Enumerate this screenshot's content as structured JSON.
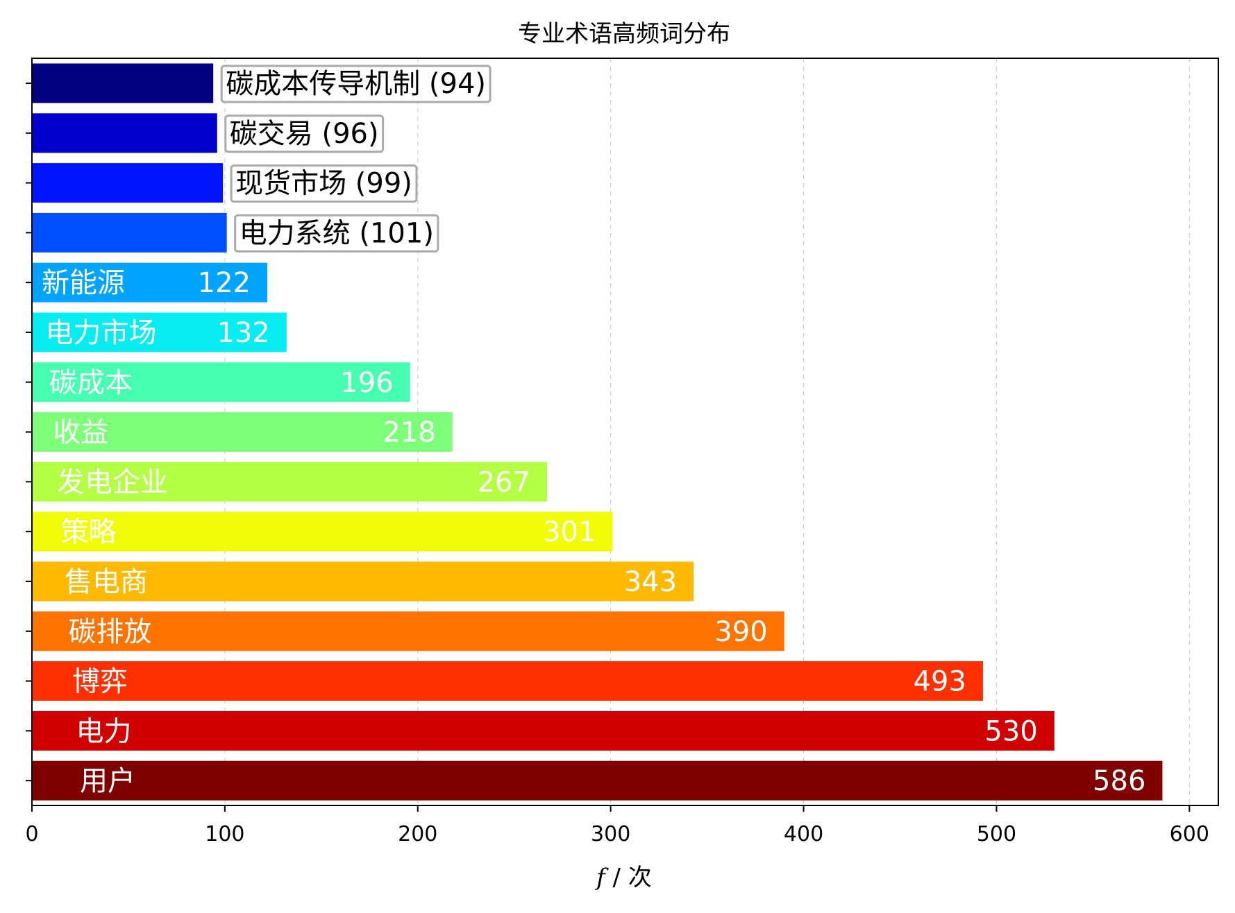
{
  "chart_data": {
    "type": "bar",
    "orientation": "horizontal",
    "title": "专业术语高频词分布",
    "xlabel": "f / 次",
    "ylabel": "",
    "xlim": [
      0,
      615
    ],
    "xticks": [
      0,
      100,
      200,
      300,
      400,
      500,
      600
    ],
    "grid": "x-dashed",
    "categories": [
      "碳成本传导机制",
      "碳交易",
      "现货市场",
      "电力系统",
      "新能源",
      "电力市场",
      "碳成本",
      "收益",
      "发电企业",
      "策略",
      "售电商",
      "碳排放",
      "博弈",
      "电力",
      "用户"
    ],
    "values": [
      94,
      96,
      99,
      101,
      122,
      132,
      196,
      218,
      267,
      301,
      343,
      390,
      493,
      530,
      586
    ],
    "bar_colors": [
      "#000080",
      "#0000cc",
      "#0015ff",
      "#0050ff",
      "#00a4ff",
      "#06ecf1",
      "#46ffb1",
      "#7dff7a",
      "#b4ff43",
      "#f1fc06",
      "#ffb900",
      "#ff7300",
      "#ff3000",
      "#d10000",
      "#800000"
    ],
    "value_labels": [
      "碳成本传导机制 (94)",
      "碳交易 (96)",
      "现货市场 (99)",
      "电力系统 (101)",
      "122",
      "132",
      "196",
      "218",
      "267",
      "301",
      "343",
      "390",
      "493",
      "530",
      "586"
    ],
    "inside_labels": [
      "",
      "",
      "",
      "",
      "新能源",
      "电力市场",
      "碳成本",
      "收益",
      "发电企业",
      "策略",
      "售电商",
      "碳排放",
      "博弈",
      "电力",
      "用户"
    ],
    "label_style": [
      "outside-box",
      "outside-box",
      "outside-box",
      "outside-box",
      "inside",
      "inside",
      "inside",
      "inside",
      "inside",
      "inside",
      "inside",
      "inside",
      "inside",
      "inside",
      "inside"
    ]
  }
}
